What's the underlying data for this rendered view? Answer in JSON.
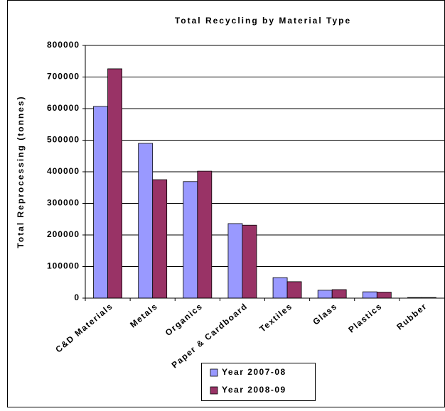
{
  "chart_data": {
    "type": "bar",
    "title": "Total Recycling by Material Type",
    "y_label": "Total Reprocessing (tonnes)",
    "categories": [
      "C&D Materials",
      "Metals",
      "Organics",
      "Paper & Cardboard",
      "Textiles",
      "Glass",
      "Plastics",
      "Rubber"
    ],
    "series": [
      {
        "name": "Year 2007-08",
        "color": "#9999ff",
        "values": [
          607000,
          490000,
          369000,
          236000,
          65000,
          25000,
          20000,
          2000
        ]
      },
      {
        "name": "Year 2008-09",
        "color": "#993366",
        "values": [
          726000,
          375000,
          402000,
          231000,
          52000,
          27000,
          19000,
          2000
        ]
      }
    ],
    "ylim": [
      0,
      800000
    ],
    "yticks": [
      0,
      100000,
      200000,
      300000,
      400000,
      500000,
      600000,
      700000,
      800000
    ],
    "grid": true,
    "legend": "bottom"
  }
}
